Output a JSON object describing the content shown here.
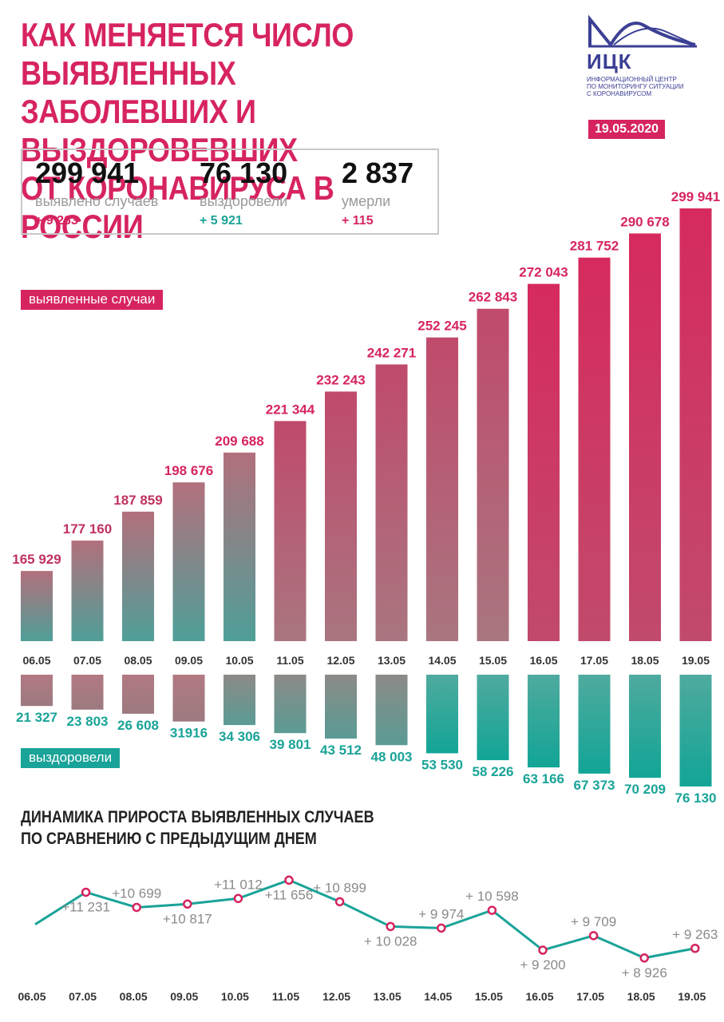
{
  "header": {
    "title_lines": [
      "КАК МЕНЯЕТСЯ ЧИСЛО ВЫЯВЛЕННЫХ",
      "ЗАБОЛЕВШИХ И ВЫЗДОРОВЕВШИХ",
      "ОТ КОРОНАВИРУСА В РОССИИ"
    ],
    "date": "19.05.2020"
  },
  "logo": {
    "name": "ИЦК",
    "subtitle_lines": [
      "Информационный центр",
      "по мониторингу ситуации",
      "с коронавирусом"
    ],
    "icon": "wave-logo-icon"
  },
  "summary": {
    "cases": {
      "value": "299 941",
      "label": "выявлено случаев",
      "delta": "+ 9 263"
    },
    "recovered": {
      "value": "76 130",
      "label": "выздоровели",
      "delta": "+ 5 921"
    },
    "deaths": {
      "value": "2 837",
      "label": "умерли",
      "delta": "+ 115"
    }
  },
  "labels": {
    "cases_tag": "выявленные случаи",
    "recovered_tag": "выздоровели"
  },
  "colors": {
    "accent": "#d6245f",
    "teal": "#1aa398",
    "gray_mid": "#a07780"
  },
  "chart_data": [
    {
      "type": "bar",
      "categories": [
        "06.05",
        "07.05",
        "08.05",
        "09.05",
        "10.05",
        "11.05",
        "12.05",
        "13.05",
        "14.05",
        "15.05",
        "16.05",
        "17.05",
        "18.05",
        "19.05"
      ],
      "series": [
        {
          "name": "выявленные случаи",
          "values": [
            165929,
            177160,
            187859,
            198676,
            209688,
            221344,
            232243,
            242271,
            252245,
            262843,
            272043,
            281752,
            290678,
            299941
          ],
          "labels": [
            "165 929",
            "177 160",
            "187 859",
            "198 676",
            "209 688",
            "221 344",
            "232 243",
            "242 271",
            "252 245",
            "262 843",
            "272 043",
            "281 752",
            "290 678",
            "299 941"
          ]
        },
        {
          "name": "выздоровели",
          "values": [
            21327,
            23803,
            26608,
            31916,
            34306,
            39801,
            43512,
            48003,
            53530,
            58226,
            63166,
            67373,
            70209,
            76130
          ],
          "labels": [
            "21 327",
            "23 803",
            "26 608",
            "31916",
            "34 306",
            "39 801",
            "43 512",
            "48 003",
            "53 530",
            "58 226",
            "63 166",
            "67 373",
            "70 209",
            "76 130"
          ]
        }
      ]
    },
    {
      "type": "line",
      "title_lines": [
        "ДИНАМИКА ПРИРОСТА ВЫЯВЛЕННЫХ СЛУЧАЕВ",
        "ПО СРАВНЕНИЮ С ПРЕДЫДУЩИМ ДНЕМ"
      ],
      "x": [
        "06.05",
        "07.05",
        "08.05",
        "09.05",
        "10.05",
        "11.05",
        "12.05",
        "13.05",
        "14.05",
        "15.05",
        "16.05",
        "17.05",
        "18.05",
        "19.05"
      ],
      "y": [
        10102,
        11231,
        10699,
        10817,
        11012,
        11656,
        10899,
        10028,
        9974,
        10598,
        9200,
        9709,
        8926,
        9263
      ],
      "labels": [
        "",
        "+11 231",
        "+10 699",
        "+10 817",
        "+11 012",
        "+11 656",
        "+ 10 899",
        "+ 10 028",
        "+ 9 974",
        "+ 10 598",
        "+ 9 200",
        "+ 9 709",
        "+ 8 926",
        "+ 9 263"
      ]
    }
  ]
}
